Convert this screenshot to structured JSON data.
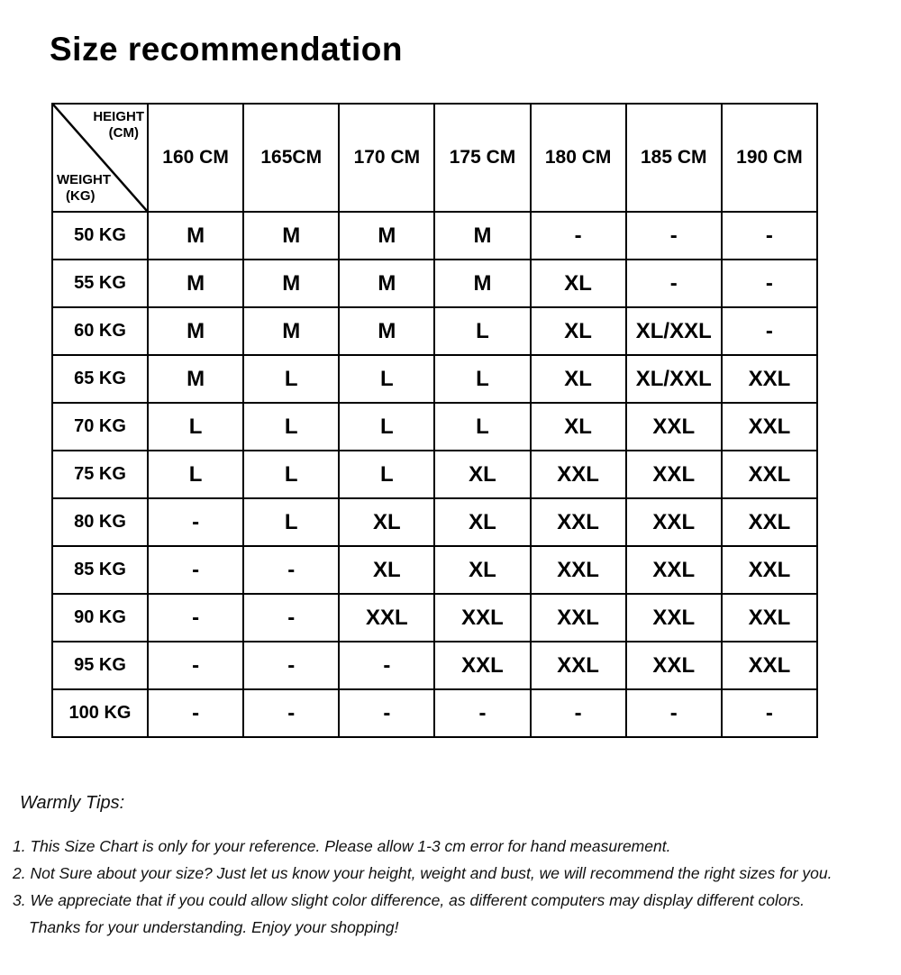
{
  "title": "Size recommendation",
  "table": {
    "corner": {
      "top_label": "HEIGHT",
      "top_unit": "(CM)",
      "bottom_label": "WEIGHT",
      "bottom_unit": "(KG)"
    },
    "columns": [
      "160 CM",
      "165CM",
      "170 CM",
      "175 CM",
      "180 CM",
      "185 CM",
      "190 CM"
    ],
    "rows": [
      {
        "weight": "50 KG",
        "sizes": [
          "M",
          "M",
          "M",
          "M",
          "-",
          "-",
          "-"
        ]
      },
      {
        "weight": "55 KG",
        "sizes": [
          "M",
          "M",
          "M",
          "M",
          "XL",
          "-",
          "-"
        ]
      },
      {
        "weight": "60 KG",
        "sizes": [
          "M",
          "M",
          "M",
          "L",
          "XL",
          "XL/XXL",
          "-"
        ]
      },
      {
        "weight": "65 KG",
        "sizes": [
          "M",
          "L",
          "L",
          "L",
          "XL",
          "XL/XXL",
          "XXL"
        ]
      },
      {
        "weight": "70 KG",
        "sizes": [
          "L",
          "L",
          "L",
          "L",
          "XL",
          "XXL",
          "XXL"
        ]
      },
      {
        "weight": "75 KG",
        "sizes": [
          "L",
          "L",
          "L",
          "XL",
          "XXL",
          "XXL",
          "XXL"
        ]
      },
      {
        "weight": "80 KG",
        "sizes": [
          "-",
          "L",
          "XL",
          "XL",
          "XXL",
          "XXL",
          "XXL"
        ]
      },
      {
        "weight": "85 KG",
        "sizes": [
          "-",
          "-",
          "XL",
          "XL",
          "XXL",
          "XXL",
          "XXL"
        ]
      },
      {
        "weight": "90 KG",
        "sizes": [
          "-",
          "-",
          "XXL",
          "XXL",
          "XXL",
          "XXL",
          "XXL"
        ]
      },
      {
        "weight": "95 KG",
        "sizes": [
          "-",
          "-",
          "-",
          "XXL",
          "XXL",
          "XXL",
          "XXL"
        ]
      },
      {
        "weight": "100 KG",
        "sizes": [
          "-",
          "-",
          "-",
          "-",
          "-",
          "-",
          "-"
        ]
      }
    ]
  },
  "tips": {
    "heading": "Warmly Tips:",
    "items": [
      "1. This Size Chart is only for your reference. Please allow 1-3 cm error for hand measurement.",
      "2. Not Sure about your size? Just let us know your height, weight and bust, we will recommend the right sizes for you.",
      "3. We appreciate that if you could allow slight color difference, as different computers may display different colors."
    ],
    "closing": "Thanks for your understanding. Enjoy your shopping!"
  },
  "colors": {
    "text": "#000000",
    "background": "#ffffff",
    "border": "#000000"
  },
  "chart_data": {
    "type": "table",
    "title": "Size recommendation",
    "col_axis_label": "HEIGHT (CM)",
    "row_axis_label": "WEIGHT (KG)",
    "columns": [
      "160 CM",
      "165CM",
      "170 CM",
      "175 CM",
      "180 CM",
      "185 CM",
      "190 CM"
    ],
    "row_labels": [
      "50 KG",
      "55 KG",
      "60 KG",
      "65 KG",
      "70 KG",
      "75 KG",
      "80 KG",
      "85 KG",
      "90 KG",
      "95 KG",
      "100 KG"
    ],
    "values": [
      [
        "M",
        "M",
        "M",
        "M",
        "-",
        "-",
        "-"
      ],
      [
        "M",
        "M",
        "M",
        "M",
        "XL",
        "-",
        "-"
      ],
      [
        "M",
        "M",
        "M",
        "L",
        "XL",
        "XL/XXL",
        "-"
      ],
      [
        "M",
        "L",
        "L",
        "L",
        "XL",
        "XL/XXL",
        "XXL"
      ],
      [
        "L",
        "L",
        "L",
        "L",
        "XL",
        "XXL",
        "XXL"
      ],
      [
        "L",
        "L",
        "L",
        "XL",
        "XXL",
        "XXL",
        "XXL"
      ],
      [
        "-",
        "L",
        "XL",
        "XL",
        "XXL",
        "XXL",
        "XXL"
      ],
      [
        "-",
        "-",
        "XL",
        "XL",
        "XXL",
        "XXL",
        "XXL"
      ],
      [
        "-",
        "-",
        "XXL",
        "XXL",
        "XXL",
        "XXL",
        "XXL"
      ],
      [
        "-",
        "-",
        "-",
        "XXL",
        "XXL",
        "XXL",
        "XXL"
      ],
      [
        "-",
        "-",
        "-",
        "-",
        "-",
        "-",
        "-"
      ]
    ]
  }
}
